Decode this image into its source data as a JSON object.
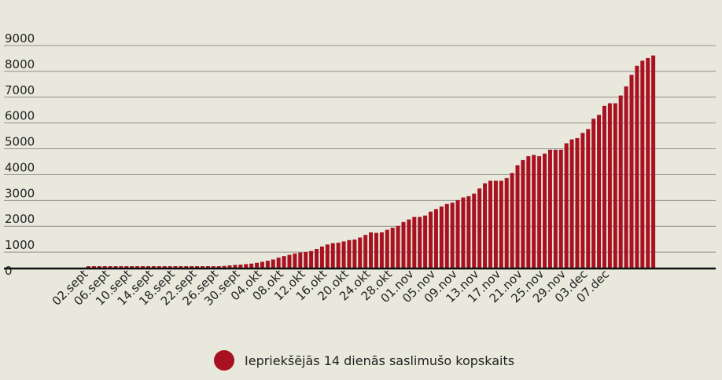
{
  "chart_data": {
    "type": "bar",
    "title": "",
    "xlabel": "",
    "ylabel": "",
    "ylim": [
      0,
      9000
    ],
    "yticks": [
      0,
      1000,
      2000,
      3000,
      4000,
      5000,
      6000,
      7000,
      8000,
      9000
    ],
    "grid": true,
    "legend_position": "bottom",
    "bar_color": "#a8111f",
    "series": [
      {
        "name": "Iepriekšējās 14 dienās saslimušo kopskaits"
      }
    ],
    "x_tick_labels": [
      "02.sept",
      "06.sept",
      "10.sept",
      "14.sept",
      "18.sept",
      "22.sept",
      "26.sept",
      "30.sept",
      "04.okt",
      "08.okt",
      "12.okt",
      "16.okt",
      "20.okt",
      "24.okt",
      "28.okt",
      "01.nov",
      "05.nov",
      "09.nov",
      "13.nov",
      "17.nov",
      "21.nov",
      "25.nov",
      "29.nov",
      "03.dec",
      "07.dec"
    ],
    "x_tick_every": 4,
    "values": [
      90,
      90,
      90,
      90,
      90,
      90,
      90,
      90,
      90,
      90,
      90,
      90,
      90,
      90,
      90,
      90,
      90,
      90,
      90,
      90,
      90,
      90,
      90,
      90,
      90,
      100,
      120,
      140,
      150,
      170,
      190,
      220,
      260,
      300,
      350,
      420,
      480,
      530,
      580,
      620,
      640,
      680,
      760,
      850,
      930,
      980,
      1000,
      1050,
      1100,
      1120,
      1200,
      1300,
      1400,
      1380,
      1400,
      1500,
      1580,
      1650,
      1800,
      1900,
      2000,
      2000,
      2050,
      2200,
      2300,
      2400,
      2500,
      2550,
      2650,
      2750,
      2800,
      2900,
      3100,
      3300,
      3400,
      3400,
      3400,
      3500,
      3700,
      4000,
      4200,
      4350,
      4400,
      4350,
      4450,
      4600,
      4600,
      4600,
      4850,
      5000,
      5050,
      5250,
      5400,
      5800,
      5950,
      6300,
      6400,
      6400,
      6700,
      7050,
      7500,
      7850,
      8050,
      8150,
      8250
    ]
  }
}
